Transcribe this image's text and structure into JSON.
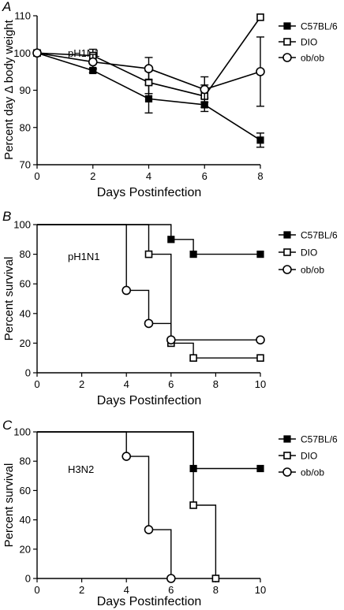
{
  "chart_data": [
    {
      "panel_label": "A",
      "type": "line",
      "inset_text": "pH1N1",
      "xlabel": "Days Postinfection",
      "ylabel": "Percent day Δ body weight",
      "xlim": [
        0,
        8
      ],
      "ylim": [
        70,
        110
      ],
      "xticks": [
        0,
        2,
        4,
        6,
        8
      ],
      "yticks": [
        70,
        80,
        90,
        100,
        110
      ],
      "legend_position": "right",
      "series": [
        {
          "name": "C57BL/6",
          "marker": "filled-square",
          "x": [
            0,
            2,
            4,
            6,
            8
          ],
          "y": [
            100,
            95.3,
            87.7,
            86.1,
            76.6
          ],
          "err": [
            0,
            0.6,
            3.8,
            1.8,
            1.9
          ]
        },
        {
          "name": "DIO",
          "marker": "open-square",
          "x": [
            0,
            2,
            4,
            6,
            8
          ],
          "y": [
            100,
            99.3,
            92.1,
            88.4,
            109.6
          ],
          "err": [
            0,
            1.7,
            3.0,
            3.0,
            0
          ]
        },
        {
          "name": "ob/ob",
          "marker": "open-circle",
          "x": [
            0,
            2,
            4,
            6,
            8
          ],
          "y": [
            100,
            97.6,
            95.8,
            90.2,
            95
          ],
          "err": [
            0,
            2.0,
            3.0,
            3.4,
            9.3
          ]
        }
      ]
    },
    {
      "panel_label": "B",
      "type": "line",
      "step": true,
      "inset_text": "pH1N1",
      "xlabel": "Days Postinfection",
      "ylabel": "Percent survival",
      "xlim": [
        0,
        10
      ],
      "ylim": [
        0,
        100
      ],
      "xticks": [
        0,
        2,
        4,
        6,
        8,
        10
      ],
      "yticks": [
        0,
        20,
        40,
        60,
        80,
        100
      ],
      "legend_position": "right",
      "series": [
        {
          "name": "C57BL/6",
          "marker": "filled-square",
          "steps": [
            [
              0,
              100
            ],
            [
              6,
              90
            ],
            [
              7,
              80
            ],
            [
              10,
              80
            ]
          ],
          "markers": [
            [
              6,
              90
            ],
            [
              7,
              80
            ],
            [
              10,
              80
            ]
          ]
        },
        {
          "name": "DIO",
          "marker": "open-square",
          "steps": [
            [
              0,
              100
            ],
            [
              5,
              80
            ],
            [
              6,
              20
            ],
            [
              7,
              10
            ],
            [
              10,
              10
            ]
          ],
          "markers": [
            [
              5,
              80
            ],
            [
              6,
              20
            ],
            [
              7,
              10
            ],
            [
              10,
              10
            ]
          ]
        },
        {
          "name": "ob/ob",
          "marker": "open-circle",
          "steps": [
            [
              0,
              100
            ],
            [
              4,
              55.6
            ],
            [
              5,
              33.3
            ],
            [
              6,
              22.2
            ],
            [
              10,
              22.2
            ]
          ],
          "markers": [
            [
              4,
              55.6
            ],
            [
              5,
              33.3
            ],
            [
              6,
              22.2
            ],
            [
              10,
              22.2
            ]
          ]
        }
      ]
    },
    {
      "panel_label": "C",
      "type": "line",
      "step": true,
      "inset_text": "H3N2",
      "xlabel": "Days Postinfection",
      "ylabel": "Percent survival",
      "xlim": [
        0,
        10
      ],
      "ylim": [
        0,
        100
      ],
      "xticks": [
        0,
        2,
        4,
        6,
        8,
        10
      ],
      "yticks": [
        0,
        20,
        40,
        60,
        80,
        100
      ],
      "legend_position": "right",
      "series": [
        {
          "name": "C57BL/6",
          "marker": "filled-square",
          "steps": [
            [
              0,
              100
            ],
            [
              7,
              75
            ],
            [
              10,
              75
            ]
          ],
          "markers": [
            [
              7,
              75
            ],
            [
              10,
              75
            ]
          ]
        },
        {
          "name": "DIO",
          "marker": "open-square",
          "steps": [
            [
              0,
              100
            ],
            [
              7,
              50
            ],
            [
              8,
              0
            ]
          ],
          "markers": [
            [
              7,
              50
            ],
            [
              8,
              0
            ]
          ]
        },
        {
          "name": "ob/ob",
          "marker": "open-circle",
          "steps": [
            [
              0,
              100
            ],
            [
              4,
              83.3
            ],
            [
              5,
              33.3
            ],
            [
              6,
              0
            ]
          ],
          "markers": [
            [
              4,
              83.3
            ],
            [
              5,
              33.3
            ],
            [
              6,
              0
            ]
          ]
        }
      ]
    }
  ]
}
